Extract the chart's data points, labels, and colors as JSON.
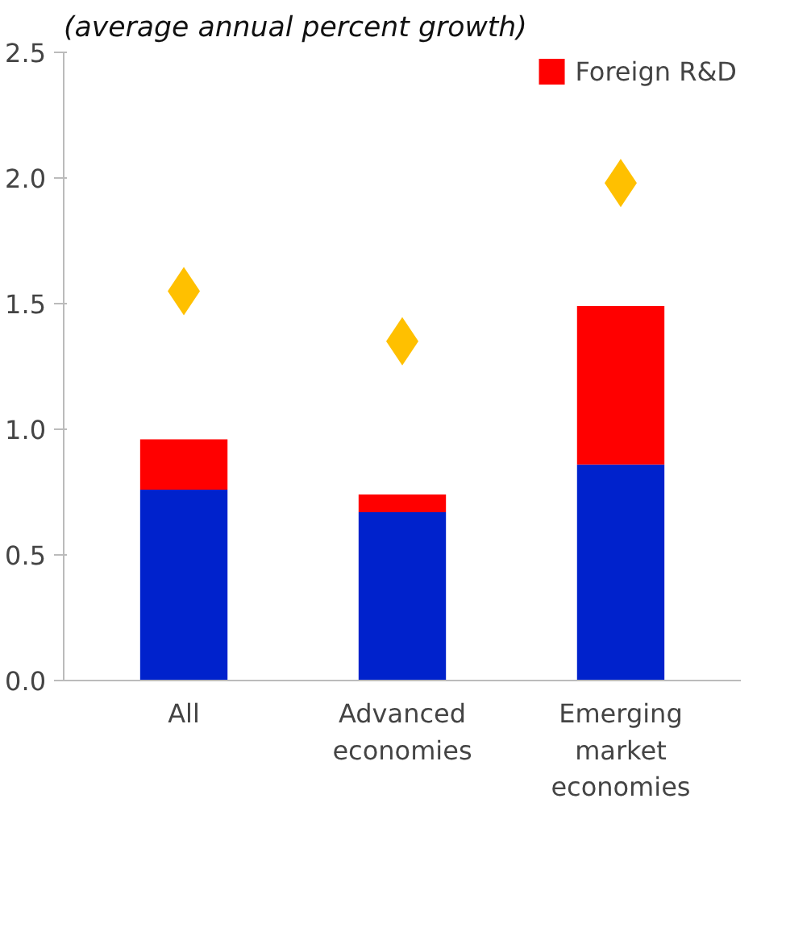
{
  "chart_data": {
    "type": "bar",
    "stacked": true,
    "subtitle": "(average annual percent growth)",
    "categories": [
      "All",
      "Advanced\neconomies",
      "Emerging\nmarket\neconomies"
    ],
    "series": [
      {
        "color": "#0022cc",
        "values": [
          0.76,
          0.67,
          0.86
        ]
      },
      {
        "name": "Foreign R&D",
        "color": "#ff0000",
        "values": [
          0.2,
          0.07,
          0.63
        ]
      },
      {
        "type": "scatter",
        "marker": "diamond",
        "color": "#ffc000",
        "values": [
          1.55,
          1.35,
          1.98
        ]
      }
    ],
    "ylim": [
      0,
      2.5
    ],
    "yticks": [
      {
        "value": 0,
        "label": "0.0"
      },
      0.5,
      {
        "value": 1,
        "label": "1.0"
      },
      1.5,
      {
        "value": 2,
        "label": "2.0"
      },
      2.5
    ],
    "grid": false,
    "legend": "top right"
  }
}
